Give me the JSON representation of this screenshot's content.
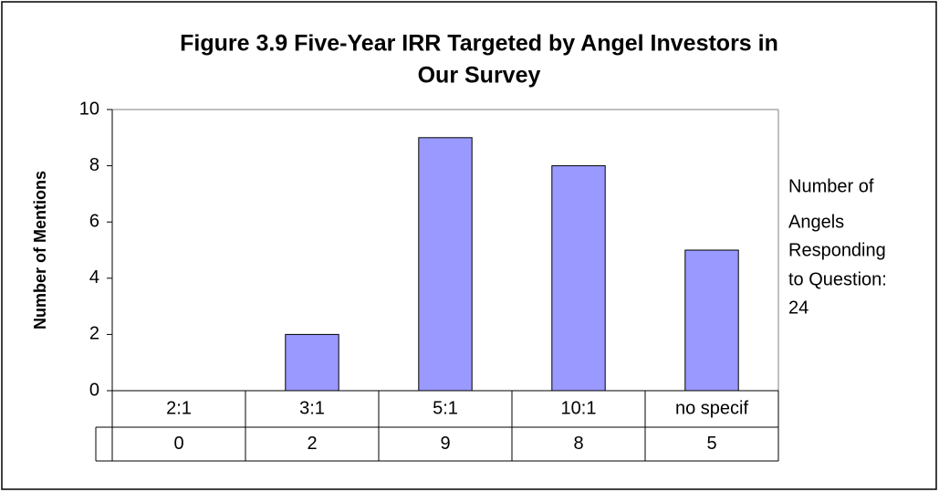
{
  "chart_data": {
    "type": "bar",
    "title": [
      "Figure 3.9 Five-Year IRR Targeted by Angel Investors in",
      "Our Survey"
    ],
    "y_label": "Number of Mentions",
    "categories": [
      "2:1",
      "3:1",
      "5:1",
      "10:1",
      "no specif"
    ],
    "values": [
      0,
      2,
      9,
      8,
      5
    ],
    "color": "#9999ff",
    "ylim": [
      0,
      10
    ],
    "yticks": [
      0,
      2,
      4,
      6,
      8,
      10
    ],
    "grid": false,
    "data_table": true,
    "annotation": [
      "Number of",
      "Angels",
      "Responding",
      "to Question:",
      "24"
    ]
  }
}
